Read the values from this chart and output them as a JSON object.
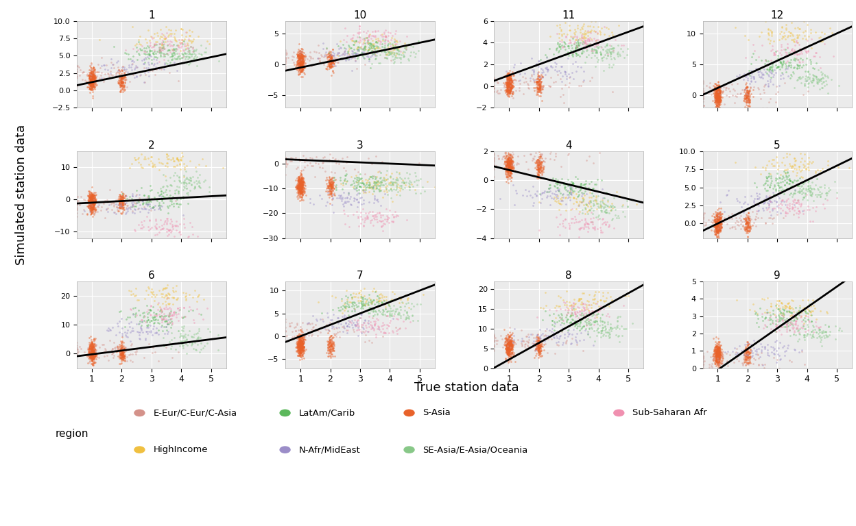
{
  "subplot_titles": [
    "1",
    "10",
    "11",
    "12",
    "2",
    "3",
    "4",
    "5",
    "6",
    "7",
    "8",
    "9"
  ],
  "subplot_order": [
    1,
    10,
    11,
    12,
    2,
    3,
    4,
    5,
    6,
    7,
    8,
    9
  ],
  "nrows": 3,
  "ncols": 4,
  "regions": [
    "S-Asia",
    "E-Eur/C-Eur/C-Asia",
    "HighIncome",
    "LatAm/Carib",
    "N-Afr/MidEast",
    "SE-Asia/E-Asia/Oceania",
    "Sub-Saharan Afr"
  ],
  "region_colors": {
    "S-Asia": "#E8622A",
    "E-Eur/C-Eur/C-Asia": "#D4928A",
    "HighIncome": "#F0C040",
    "LatAm/Carib": "#5CB85C",
    "N-Afr/MidEast": "#9B8DC8",
    "SE-Asia/E-Asia/Oceania": "#88C888",
    "Sub-Saharan Afr": "#F090B0"
  },
  "region_x": {
    "S-Asia": [
      1.0,
      1.0,
      0.06
    ],
    "E-Eur/C-Eur/C-Asia": [
      1.5,
      2.0,
      0.5
    ],
    "HighIncome": [
      3.5,
      1.2,
      0.5
    ],
    "LatAm/Carib": [
      3.2,
      1.0,
      0.5
    ],
    "N-Afr/MidEast": [
      2.5,
      1.2,
      0.5
    ],
    "SE-Asia/E-Asia/Oceania": [
      4.2,
      0.8,
      0.5
    ],
    "Sub-Saharan Afr": [
      3.5,
      1.0,
      0.5
    ]
  },
  "region_n": {
    "S-Asia": 500,
    "E-Eur/C-Eur/C-Asia": 80,
    "HighIncome": 80,
    "LatAm/Carib": 100,
    "N-Afr/MidEast": 70,
    "SE-Asia/E-Asia/Oceania": 80,
    "Sub-Saharan Afr": 80
  },
  "xlabel": "True station data",
  "ylabel": "Simulated station data",
  "background_color": "#EBEBEB",
  "grid_color": "#FFFFFF",
  "line_color": "#000000",
  "point_alpha": 0.45,
  "point_size": 4,
  "ylims": {
    "1": [
      -2.5,
      10.0
    ],
    "10": [
      -7,
      7
    ],
    "11": [
      -2,
      6
    ],
    "12": [
      -2,
      12
    ],
    "2": [
      -12,
      15
    ],
    "3": [
      -30,
      5
    ],
    "4": [
      -4,
      2
    ],
    "5": [
      -2,
      10
    ],
    "6": [
      -5,
      25
    ],
    "7": [
      -7,
      12
    ],
    "8": [
      0,
      22
    ],
    "9": [
      0,
      5
    ]
  },
  "xlim": [
    0.5,
    5.5
  ],
  "xticks": [
    1,
    2,
    3,
    4,
    5
  ],
  "line_params": {
    "1": [
      0.3,
      0.9
    ],
    "10": [
      -1.5,
      1.0
    ],
    "11": [
      0.0,
      1.0
    ],
    "12": [
      -1.0,
      2.2
    ],
    "2": [
      -1.5,
      0.5
    ],
    "3": [
      2.0,
      -0.5
    ],
    "4": [
      1.2,
      -0.5
    ],
    "5": [
      -2.0,
      2.0
    ],
    "6": [
      -1.5,
      1.3
    ],
    "7": [
      -2.5,
      2.5
    ],
    "8": [
      -2.0,
      4.2
    ],
    "9": [
      -1.3,
      1.2
    ]
  },
  "region_y_offsets": {
    "1": {
      "S-Asia": 1.5,
      "E-Eur/C-Eur/C-Asia": 2.5,
      "HighIncome": 7.5,
      "LatAm/Carib": 5.5,
      "N-Afr/MidEast": 3.5,
      "SE-Asia/E-Asia/Oceania": 5.0,
      "Sub-Saharan Afr": 6.5
    },
    "10": {
      "S-Asia": 0.5,
      "E-Eur/C-Eur/C-Asia": 1.0,
      "HighIncome": 3.0,
      "LatAm/Carib": 2.5,
      "N-Afr/MidEast": 1.5,
      "SE-Asia/E-Asia/Oceania": 2.0,
      "Sub-Saharan Afr": 4.5
    },
    "11": {
      "S-Asia": 0.2,
      "E-Eur/C-Eur/C-Asia": 0.0,
      "HighIncome": 5.0,
      "LatAm/Carib": 3.5,
      "N-Afr/MidEast": 1.5,
      "SE-Asia/E-Asia/Oceania": 3.0,
      "Sub-Saharan Afr": 4.0
    },
    "12": {
      "S-Asia": 0.0,
      "E-Eur/C-Eur/C-Asia": 0.5,
      "HighIncome": 10.0,
      "LatAm/Carib": 5.0,
      "N-Afr/MidEast": 3.0,
      "SE-Asia/E-Asia/Oceania": 2.5,
      "Sub-Saharan Afr": 7.0
    },
    "2": {
      "S-Asia": -1.0,
      "E-Eur/C-Eur/C-Asia": -1.5,
      "HighIncome": 12.0,
      "LatAm/Carib": 0.0,
      "N-Afr/MidEast": -2.0,
      "SE-Asia/E-Asia/Oceania": 5.0,
      "Sub-Saharan Afr": -9.0
    },
    "3": {
      "S-Asia": -9.0,
      "E-Eur/C-Eur/C-Asia": 1.0,
      "HighIncome": -8.5,
      "LatAm/Carib": -8.0,
      "N-Afr/MidEast": -14.0,
      "SE-Asia/E-Asia/Oceania": -8.0,
      "Sub-Saharan Afr": -22.0
    },
    "4": {
      "S-Asia": 1.0,
      "E-Eur/C-Eur/C-Asia": 1.5,
      "HighIncome": -1.5,
      "LatAm/Carib": -0.5,
      "N-Afr/MidEast": -1.0,
      "SE-Asia/E-Asia/Oceania": -2.0,
      "Sub-Saharan Afr": -3.0
    },
    "5": {
      "S-Asia": 0.0,
      "E-Eur/C-Eur/C-Asia": 0.5,
      "HighIncome": 8.0,
      "LatAm/Carib": 5.5,
      "N-Afr/MidEast": 3.0,
      "SE-Asia/E-Asia/Oceania": 4.5,
      "Sub-Saharan Afr": 2.5
    },
    "6": {
      "S-Asia": 0.5,
      "E-Eur/C-Eur/C-Asia": 1.0,
      "HighIncome": 20.0,
      "LatAm/Carib": 12.0,
      "N-Afr/MidEast": 8.0,
      "SE-Asia/E-Asia/Oceania": 5.0,
      "Sub-Saharan Afr": 14.0
    },
    "7": {
      "S-Asia": -2.0,
      "E-Eur/C-Eur/C-Asia": 1.5,
      "HighIncome": 8.0,
      "LatAm/Carib": 7.0,
      "N-Afr/MidEast": 3.0,
      "SE-Asia/E-Asia/Oceania": 5.5,
      "Sub-Saharan Afr": 2.0
    },
    "8": {
      "S-Asia": 5.5,
      "E-Eur/C-Eur/C-Asia": 7.0,
      "HighIncome": 17.0,
      "LatAm/Carib": 12.0,
      "N-Afr/MidEast": 8.0,
      "SE-Asia/E-Asia/Oceania": 10.0,
      "Sub-Saharan Afr": 14.0
    },
    "9": {
      "S-Asia": 0.8,
      "E-Eur/C-Eur/C-Asia": 0.5,
      "HighIncome": 3.5,
      "LatAm/Carib": 3.0,
      "N-Afr/MidEast": 1.0,
      "SE-Asia/E-Asia/Oceania": 2.0,
      "Sub-Saharan Afr": 2.5
    }
  }
}
